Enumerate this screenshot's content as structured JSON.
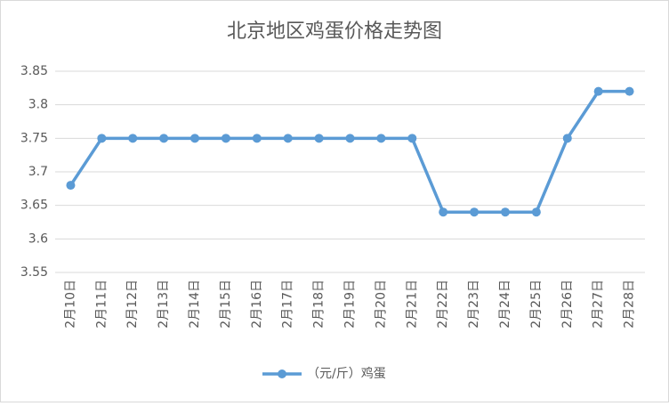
{
  "chart_data": {
    "type": "line",
    "title": "北京地区鸡蛋价格走势图",
    "categories": [
      "2月10日",
      "2月11日",
      "2月12日",
      "2月13日",
      "2月14日",
      "2月15日",
      "2月16日",
      "2月17日",
      "2月18日",
      "2月19日",
      "2月20日",
      "2月21日",
      "2月22日",
      "2月23日",
      "2月24日",
      "2月25日",
      "2月26日",
      "2月27日",
      "2月28日"
    ],
    "series": [
      {
        "name": "（元/斤）鸡蛋",
        "color": "#5b9bd5",
        "values": [
          3.68,
          3.75,
          3.75,
          3.75,
          3.75,
          3.75,
          3.75,
          3.75,
          3.75,
          3.75,
          3.75,
          3.75,
          3.64,
          3.64,
          3.64,
          3.64,
          3.75,
          3.82,
          3.82
        ]
      }
    ],
    "ylim": [
      3.55,
      3.85
    ],
    "yticks": [
      3.55,
      3.6,
      3.65,
      3.7,
      3.75,
      3.8,
      3.85
    ],
    "grid": true
  }
}
